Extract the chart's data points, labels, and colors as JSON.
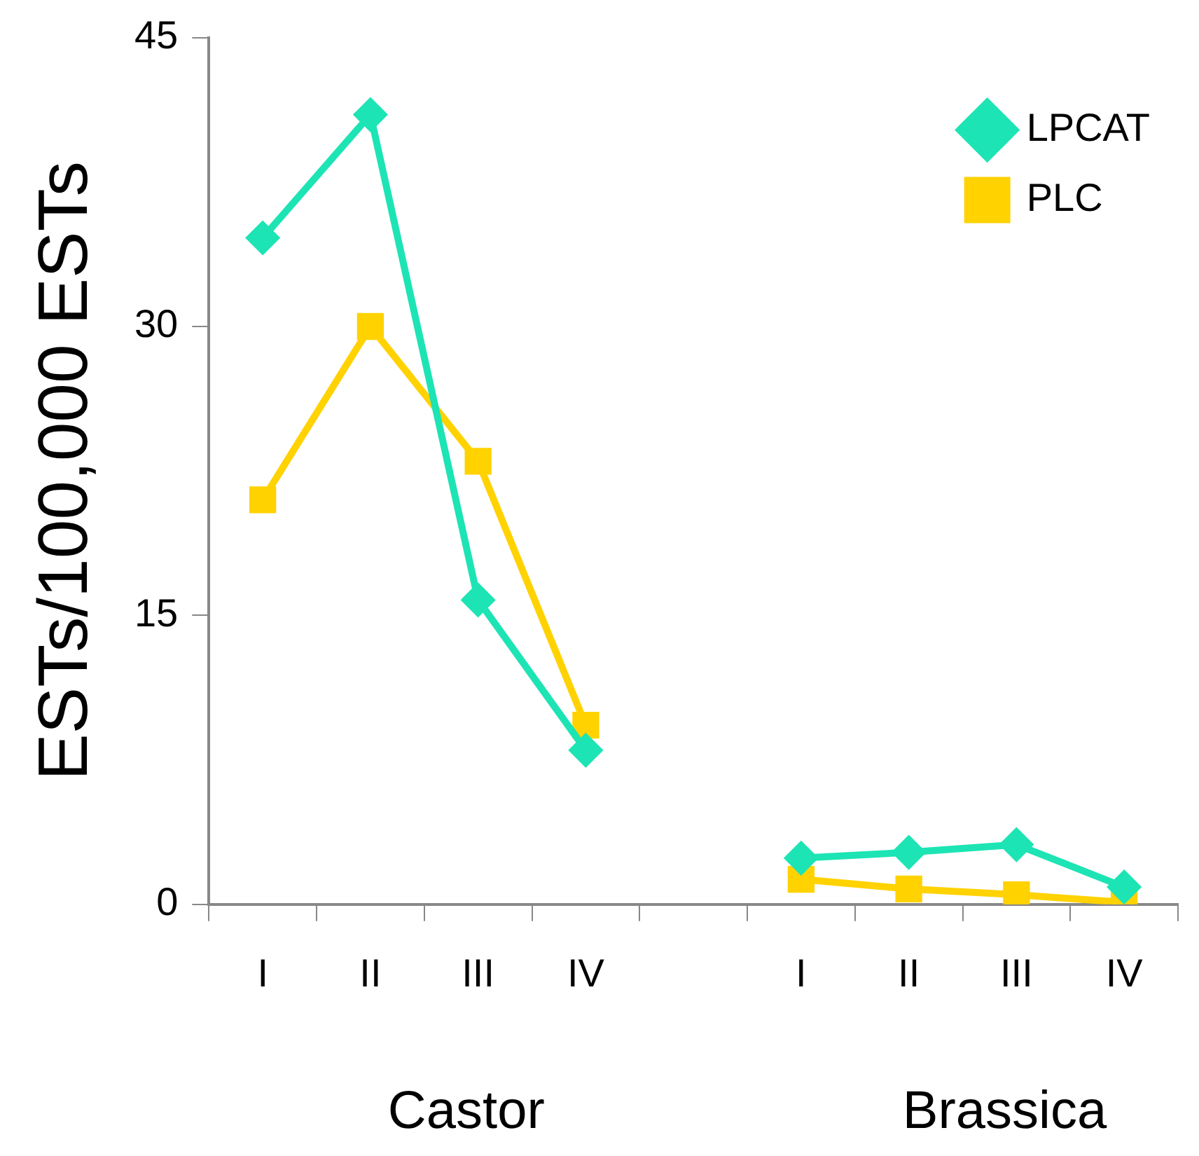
{
  "chart_data": {
    "type": "line",
    "ylabel": "ESTs/100,000 ESTs",
    "categories": [
      "I",
      "II",
      "III",
      "IV",
      null,
      "I",
      "II",
      "III",
      "IV"
    ],
    "series": [
      {
        "name": "LPCAT",
        "color": "#1de4b4",
        "marker": "diamond",
        "values": [
          34.6,
          41.0,
          15.8,
          8.0,
          null,
          2.4,
          2.7,
          3.1,
          0.9
        ]
      },
      {
        "name": "PLC",
        "color": "#ffd200",
        "marker": "square",
        "values": [
          21.0,
          30.0,
          23.0,
          9.3,
          null,
          1.3,
          0.8,
          0.5,
          0.1
        ]
      }
    ],
    "ylim": [
      0,
      45
    ],
    "yticks": [
      0,
      15,
      30,
      45
    ],
    "grid": false,
    "legend": "top right",
    "line_style": "solid",
    "annotations": [
      "Castor",
      "Brassica"
    ]
  }
}
